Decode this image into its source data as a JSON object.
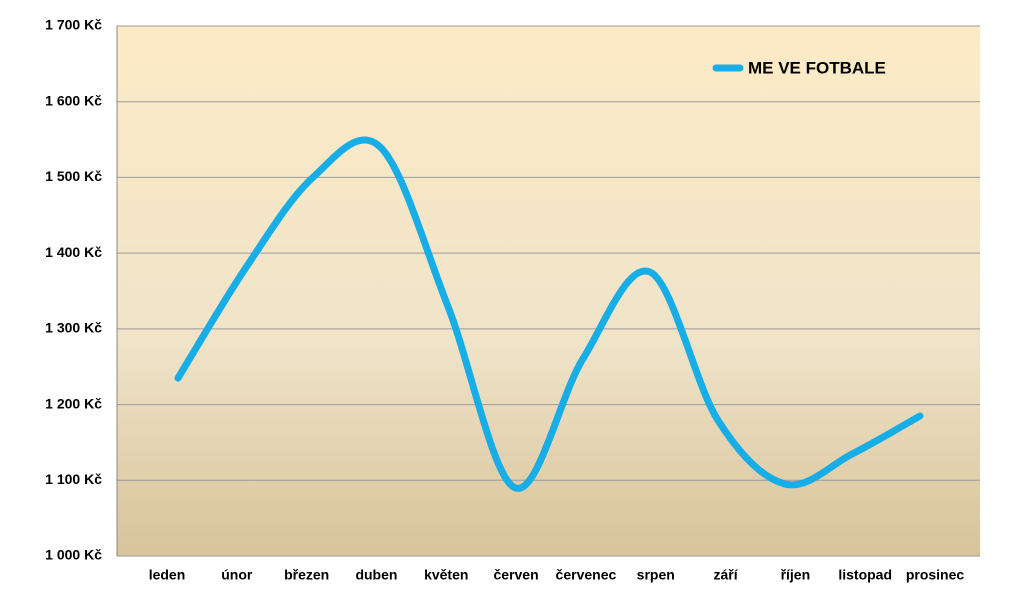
{
  "chart_data": {
    "type": "line",
    "categories": [
      "leden",
      "únor",
      "březen",
      "duben",
      "květen",
      "červen",
      "červenec",
      "srpen",
      "září",
      "říjen",
      "listopad",
      "prosinec"
    ],
    "series": [
      {
        "name": "ME VE FOTBALE",
        "color": "#17aee8",
        "values": [
          1235,
          1380,
          1500,
          1540,
          1330,
          1090,
          1260,
          1375,
          1180,
          1095,
          1135,
          1185
        ]
      }
    ],
    "ylim": [
      1000,
      1700
    ],
    "yticks": [
      {
        "value": 1000,
        "label": "1 000 Kč"
      },
      {
        "value": 1100,
        "label": "1 100 Kč"
      },
      {
        "value": 1200,
        "label": "1 200 Kč"
      },
      {
        "value": 1300,
        "label": "1 300 Kč"
      },
      {
        "value": 1400,
        "label": "1 400 Kč"
      },
      {
        "value": 1500,
        "label": "1 500 Kč"
      },
      {
        "value": 1600,
        "label": "1 600 Kč"
      },
      {
        "value": 1700,
        "label": "1 700 Kč"
      }
    ],
    "grid": true,
    "smooth": true,
    "legend": "top-right"
  }
}
